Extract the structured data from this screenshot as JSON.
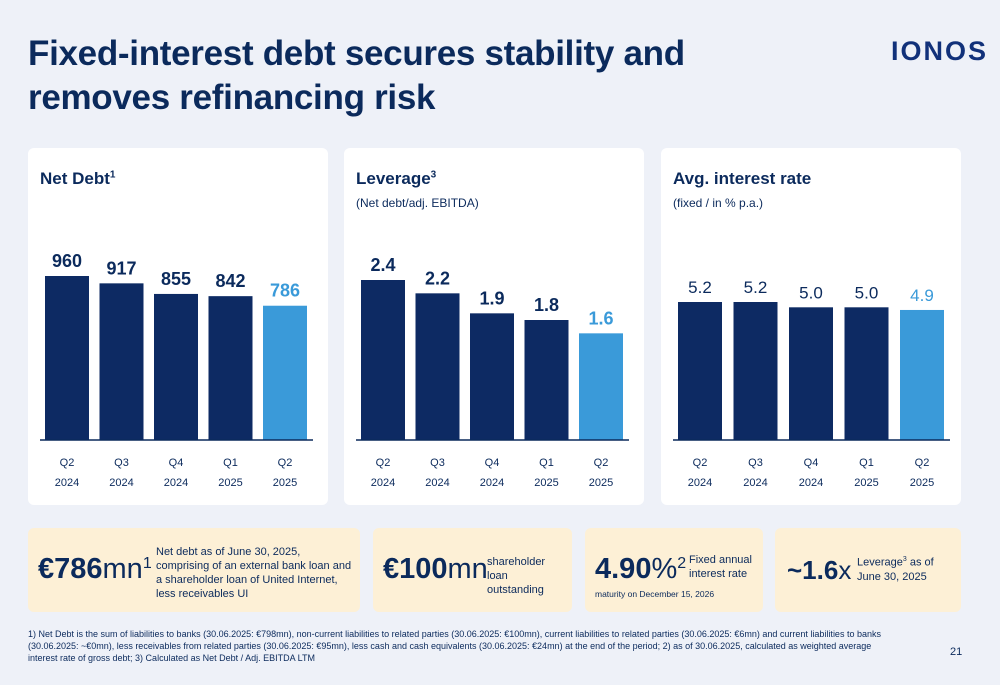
{
  "header": {
    "title": "Fixed-interest debt secures stability and removes refinancing risk",
    "logo": "IONOS"
  },
  "colors": {
    "dark_bar": "#0d2a63",
    "highlight_bar": "#3a9ad9",
    "text": "#0b2a5c"
  },
  "chart_data": [
    {
      "type": "bar",
      "title": "Net Debt",
      "title_sup": "1",
      "subtitle": "",
      "categories": [
        "Q2\n2024",
        "Q3\n2024",
        "Q4\n2024",
        "Q1\n2025",
        "Q2\n2025"
      ],
      "values": [
        960,
        917,
        855,
        842,
        786
      ],
      "labels": [
        "960",
        "917",
        "855",
        "842",
        "786"
      ],
      "highlight_index": 4,
      "ylim": [
        0,
        960
      ]
    },
    {
      "type": "bar",
      "title": "Leverage",
      "title_sup": "3",
      "subtitle": "(Net debt/adj. EBITDA)",
      "categories": [
        "Q2\n2024",
        "Q3\n2024",
        "Q4\n2024",
        "Q1\n2025",
        "Q2\n2025"
      ],
      "values": [
        2.4,
        2.2,
        1.9,
        1.8,
        1.6
      ],
      "labels": [
        "2.4",
        "2.2",
        "1.9",
        "1.8",
        "1.6"
      ],
      "highlight_index": 4,
      "ylim": [
        0,
        2.4
      ]
    },
    {
      "type": "bar",
      "title": "Avg. interest rate",
      "title_sup": "",
      "subtitle": "(fixed / in % p.a.)",
      "categories": [
        "Q2\n2024",
        "Q3\n2024",
        "Q4\n2024",
        "Q1\n2025",
        "Q2\n2025"
      ],
      "values": [
        5.2,
        5.2,
        5.0,
        5.0,
        4.9
      ],
      "labels": [
        "5.2",
        "5.2",
        "5.0",
        "5.0",
        "4.9"
      ],
      "highlight_index": 4,
      "ylim": [
        0,
        5.2
      ]
    }
  ],
  "kpis": [
    {
      "value": "€786",
      "unit": "mn",
      "sup": "1",
      "desc": "Net debt as of June 30, 2025, comprising of an external bank loan and a shareholder loan of United Internet, less receivables UI"
    },
    {
      "value": "€100",
      "unit": "mn",
      "sup": "",
      "desc": "shareholder loan outstanding"
    },
    {
      "value": "4.90",
      "unit": "%",
      "sup": "2",
      "desc": "Fixed annual interest rate",
      "note": "maturity on December 15, 2026"
    },
    {
      "value": "~1.6",
      "unit": "x",
      "sup": "",
      "desc_pre": "Leverage",
      "desc_sup": "3",
      "desc_post": " as of June 30, 2025"
    }
  ],
  "footnote": "1) Net Debt is the sum of liabilities to banks (30.06.2025: €798mn), non-current liabilities to related parties (30.06.2025: €100mn), current liabilities to related parties (30.06.2025: €6mn) and current liabilities to banks (30.06.2025: ~€0mn), less receivables from related parties (30.06.2025: €95mn), less cash and cash equivalents (30.06.2025: €24mn) at the end of the period; 2) as of 30.06.2025, calculated as weighted average interest rate of gross debt; 3) Calculated as Net Debt / Adj. EBITDA LTM",
  "page_number": "21"
}
